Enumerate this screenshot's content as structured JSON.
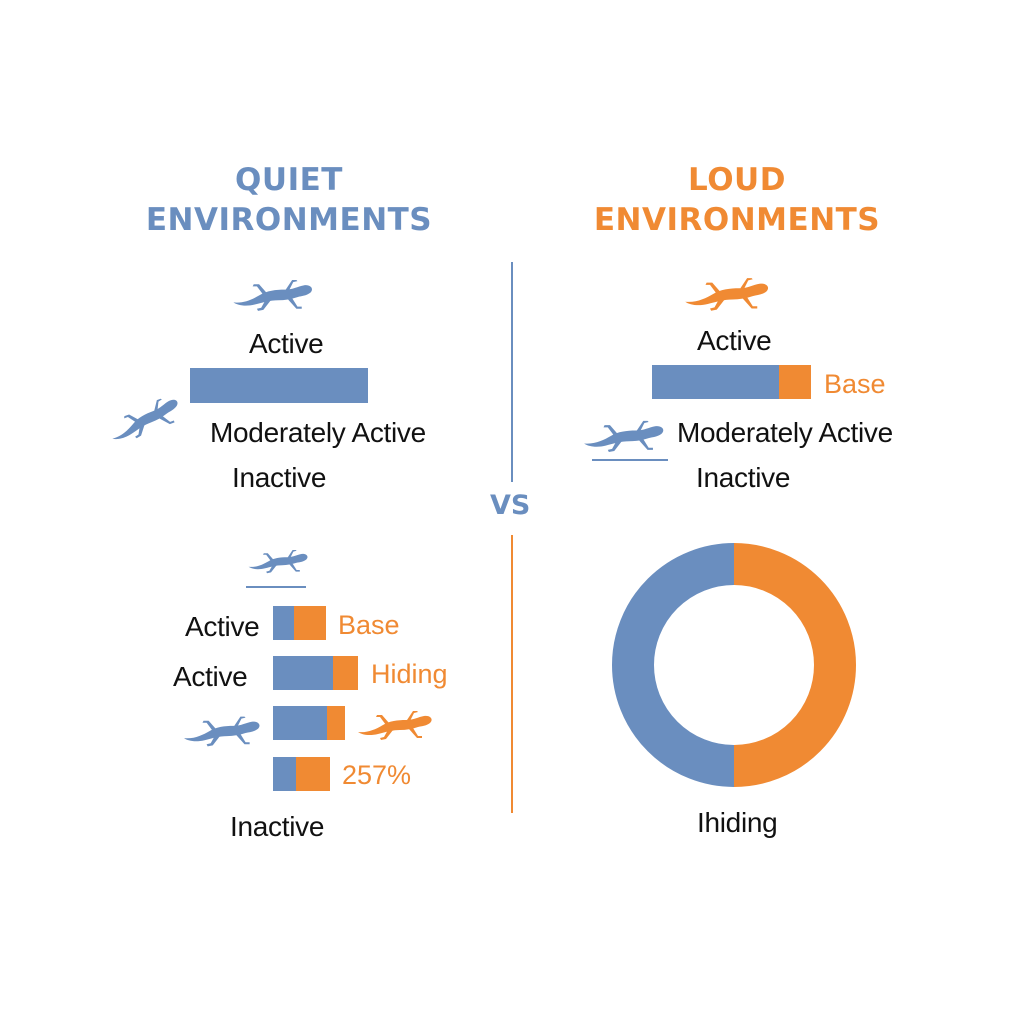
{
  "colors": {
    "quiet": "#6a8ebf",
    "loud": "#f08a33",
    "text": "#111111"
  },
  "vs_label": "VS",
  "quiet": {
    "title_lines": [
      "QUIET",
      "ENVIRONMENTS"
    ],
    "top_labels": {
      "active": "Active",
      "moderately_active": "Moderately Active",
      "inactive": "Inactive"
    },
    "lower_labels": {
      "active_1": "Active",
      "active_2": "Active",
      "inactive": "Inactive"
    },
    "icons": [
      "gecko-icon",
      "gecko-icon",
      "gecko-icon",
      "gecko-icon",
      "gecko-icon",
      "gecko-icon"
    ]
  },
  "loud": {
    "title_lines": [
      "LOUD",
      "ENVIRONMENTS"
    ],
    "top_labels": {
      "active": "Active",
      "base": "Base",
      "moderately_active": "Moderately Active",
      "inactive": "Inactive"
    },
    "donut_label": "Ihiding",
    "icons": [
      "gecko-icon",
      "gecko-icon"
    ]
  },
  "chart_data": [
    {
      "type": "bar",
      "panel": "quiet-top",
      "bars": [
        {
          "segments": [
            {
              "color": "quiet",
              "value": 1.0
            }
          ]
        }
      ]
    },
    {
      "type": "bar",
      "panel": "quiet-bottom",
      "bars": [
        {
          "label": "Active",
          "annotation": "Base",
          "segments": [
            {
              "color": "quiet",
              "value": 0.4
            },
            {
              "color": "loud",
              "value": 0.6
            }
          ]
        },
        {
          "label": "Active",
          "annotation": "Hiding",
          "segments": [
            {
              "color": "quiet",
              "value": 0.7
            },
            {
              "color": "loud",
              "value": 0.3
            }
          ]
        },
        {
          "label": "",
          "annotation": "",
          "segments": [
            {
              "color": "quiet",
              "value": 0.75
            },
            {
              "color": "loud",
              "value": 0.25
            }
          ]
        },
        {
          "label": "",
          "annotation": "257%",
          "segments": [
            {
              "color": "quiet",
              "value": 0.4
            },
            {
              "color": "loud",
              "value": 0.6
            }
          ]
        }
      ]
    },
    {
      "type": "bar",
      "panel": "loud-top",
      "bars": [
        {
          "label": "Active",
          "annotation": "Base",
          "segments": [
            {
              "color": "quiet",
              "value": 0.8
            },
            {
              "color": "loud",
              "value": 0.2
            }
          ]
        }
      ]
    },
    {
      "type": "pie",
      "panel": "loud-bottom",
      "slices": [
        {
          "color": "loud",
          "value": 0.5
        },
        {
          "color": "quiet",
          "value": 0.5
        }
      ],
      "label": "Ihiding"
    }
  ]
}
